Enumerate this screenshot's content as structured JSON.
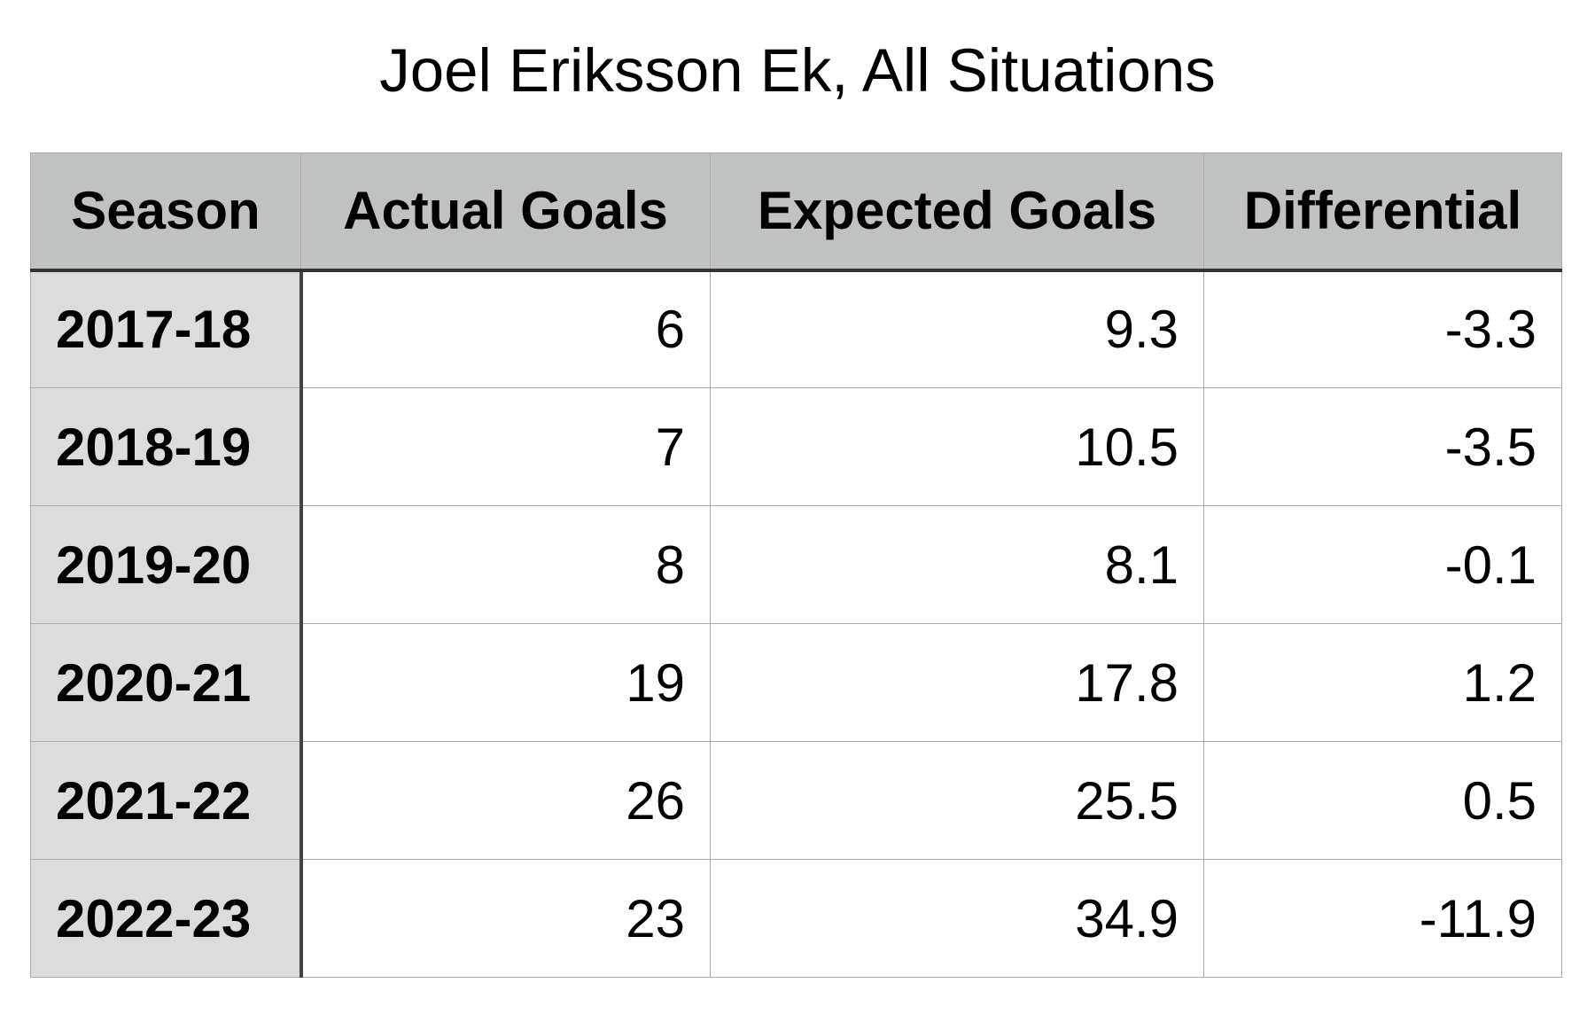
{
  "title": "Joel Eriksson Ek, All Situations",
  "table": {
    "header": [
      "Season",
      "Actual Goals",
      "Expected Goals",
      "Differential"
    ],
    "rows": [
      [
        "2017-18",
        6,
        9.3,
        -3.3
      ],
      [
        "2018-19",
        7,
        10.5,
        -3.5
      ],
      [
        "2019-20",
        8,
        8.1,
        -0.1
      ],
      [
        "2020-21",
        19,
        17.8,
        1.2
      ],
      [
        "2021-22",
        26,
        25.5,
        0.5
      ],
      [
        "2022-23",
        23,
        34.9,
        -11.9
      ]
    ]
  }
}
